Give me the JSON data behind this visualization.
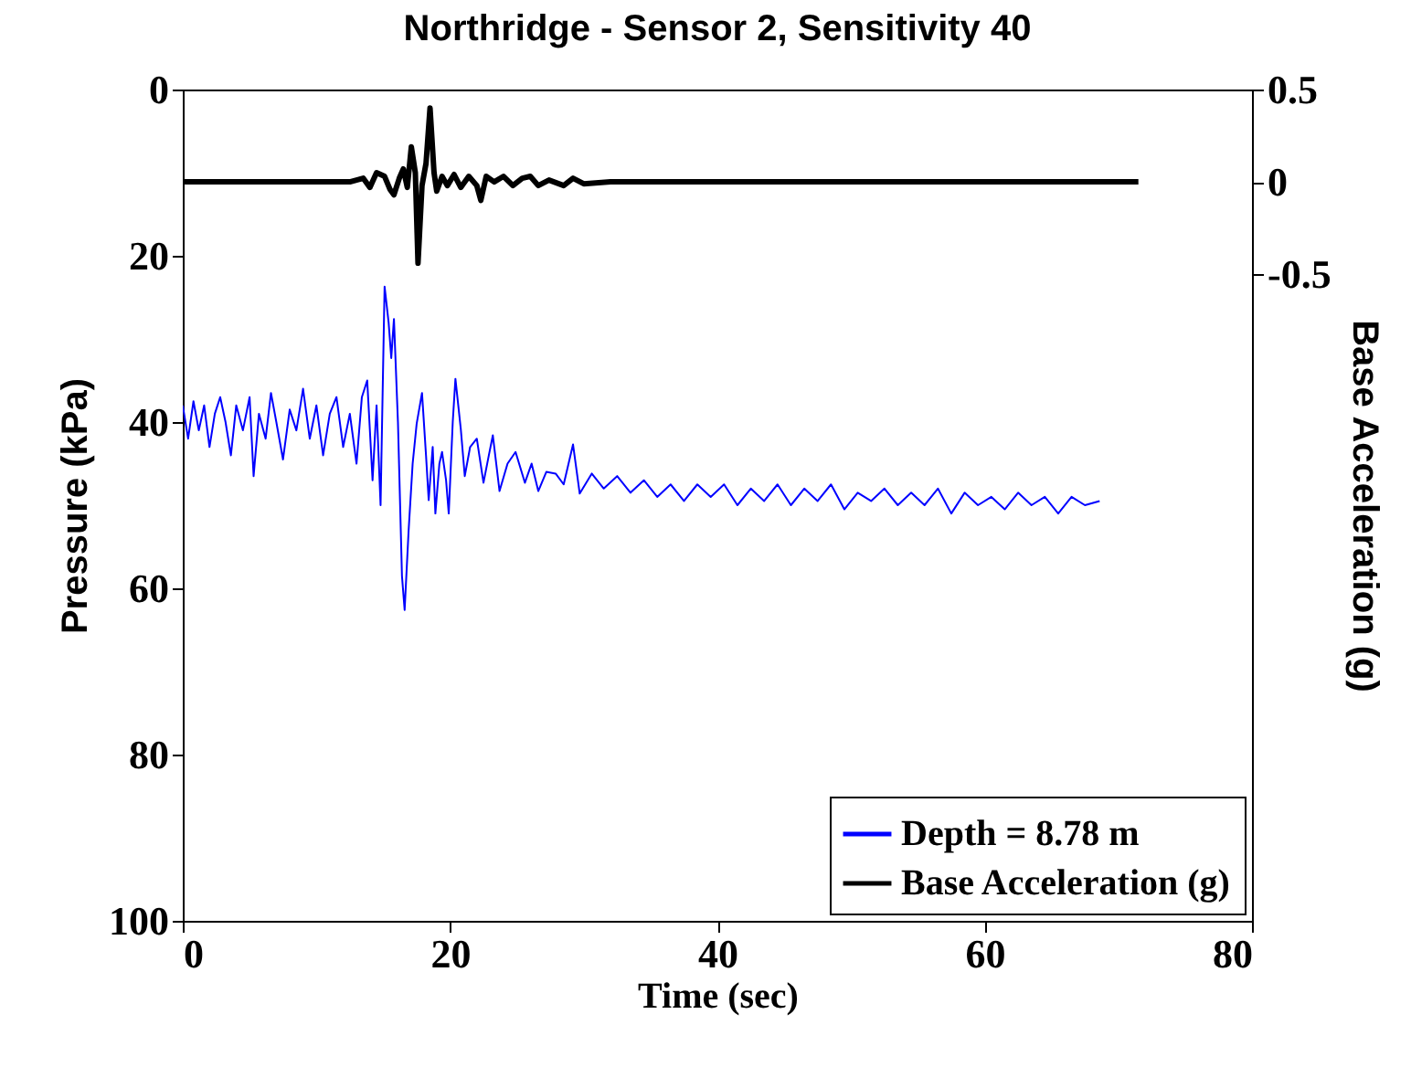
{
  "chart_data": {
    "type": "line",
    "title": "Northridge - Sensor 2, Sensitivity 40",
    "xlabel": "Time (sec)",
    "ylabel": "Pressure (kPa)",
    "y2label": "Base Acceleration (g)",
    "xlim": [
      0,
      80
    ],
    "xticks": [
      0,
      20,
      40,
      60,
      80
    ],
    "ylim": [
      100,
      0
    ],
    "yticks": [
      0,
      20,
      40,
      60,
      80,
      100
    ],
    "y2lim": [
      -4,
      0.5
    ],
    "y2ticks": [
      -0.5,
      0,
      0.5
    ],
    "grid": false,
    "legend": "bottom right",
    "series": [
      {
        "name": "Depth = 8.78 m",
        "color": "#0000ff",
        "axis": "y",
        "x": [
          0,
          0.4,
          0.8,
          1.2,
          1.6,
          2,
          2.4,
          2.8,
          3.2,
          3.6,
          4,
          4.5,
          5,
          5.3,
          5.7,
          6.2,
          6.6,
          7,
          7.5,
          8,
          8.5,
          9,
          9.5,
          10,
          10.5,
          11,
          11.5,
          12,
          12.5,
          13,
          13.4,
          13.8,
          14.2,
          14.5,
          14.8,
          15.1,
          15.4,
          15.6,
          15.8,
          16.1,
          16.4,
          16.6,
          16.9,
          17.2,
          17.5,
          17.9,
          18.2,
          18.4,
          18.7,
          18.9,
          19.2,
          19.4,
          19.7,
          19.9,
          20.2,
          20.4,
          20.8,
          21.1,
          21.5,
          22,
          22.5,
          22.9,
          23.2,
          23.7,
          24.3,
          24.9,
          25.6,
          26.1,
          26.6,
          27.2,
          27.9,
          28.5,
          29.2,
          29.7,
          30.6,
          31.5,
          32.5,
          33.5,
          34.5,
          35.5,
          36.5,
          37.5,
          38.5,
          39.5,
          40.5,
          41.5,
          42.5,
          43.5,
          44.5,
          45.5,
          46.5,
          47.5,
          48.5,
          49.5,
          50.5,
          51.5,
          52.5,
          53.5,
          54.5,
          55.5,
          56.5,
          57.5,
          58.5,
          59.5,
          60.5,
          61.5,
          62.5,
          63.5,
          64.5,
          65.5,
          66.5,
          67.5,
          68.6
        ],
        "values": [
          38,
          42,
          37.5,
          41,
          38,
          43,
          39,
          37,
          40,
          44,
          38,
          41,
          37,
          46.5,
          39,
          42,
          36.5,
          40,
          44.5,
          38.5,
          41,
          36,
          42,
          38,
          44,
          39,
          37,
          43,
          39,
          45,
          37,
          35,
          47,
          38,
          50,
          23.7,
          28,
          32.3,
          27.6,
          40,
          58.5,
          62.6,
          53,
          45,
          40.2,
          36.5,
          44,
          49.4,
          43,
          51,
          45,
          43.6,
          47,
          51,
          40,
          34.8,
          40.8,
          46.5,
          43,
          42,
          47.3,
          44,
          41.6,
          48.3,
          45,
          43.6,
          47.3,
          45,
          48.3,
          46,
          46.2,
          47.5,
          42.7,
          48.6,
          46.2,
          48,
          46.5,
          48.5,
          47,
          49,
          47.5,
          49.5,
          47.5,
          49,
          47.5,
          50,
          48,
          49.5,
          47.5,
          50,
          48,
          49.5,
          47.5,
          50.5,
          48.5,
          49.5,
          48,
          50,
          48.5,
          50,
          48,
          51,
          48.5,
          50,
          49,
          50.5,
          48.5,
          50,
          49,
          51,
          49,
          50,
          49.5
        ]
      },
      {
        "name": "Base Acceleration (g)",
        "color": "#000000",
        "axis": "y2",
        "x": [
          0,
          5,
          10,
          12.5,
          13.5,
          14,
          14.5,
          15.1,
          15.5,
          15.8,
          16.2,
          16.5,
          16.8,
          17.1,
          17.4,
          17.6,
          17.9,
          18.2,
          18.5,
          18.8,
          19,
          19.4,
          19.8,
          20.3,
          20.8,
          21.4,
          22,
          22.3,
          22.7,
          23.3,
          24,
          24.7,
          25.4,
          26,
          26.6,
          27.4,
          28.5,
          29.2,
          30,
          32,
          40,
          50,
          60,
          71.5
        ],
        "values": [
          0,
          0,
          0,
          0,
          0.02,
          -0.03,
          0.05,
          0.03,
          -0.04,
          -0.07,
          0.02,
          0.07,
          -0.03,
          0.19,
          0.05,
          -0.44,
          -0.02,
          0.1,
          0.4,
          0.05,
          -0.05,
          0.03,
          -0.02,
          0.04,
          -0.03,
          0.03,
          -0.02,
          -0.1,
          0.03,
          0,
          0.03,
          -0.02,
          0.02,
          0.03,
          -0.02,
          0.01,
          -0.02,
          0.02,
          -0.01,
          0,
          0,
          0,
          0,
          0
        ]
      }
    ]
  }
}
